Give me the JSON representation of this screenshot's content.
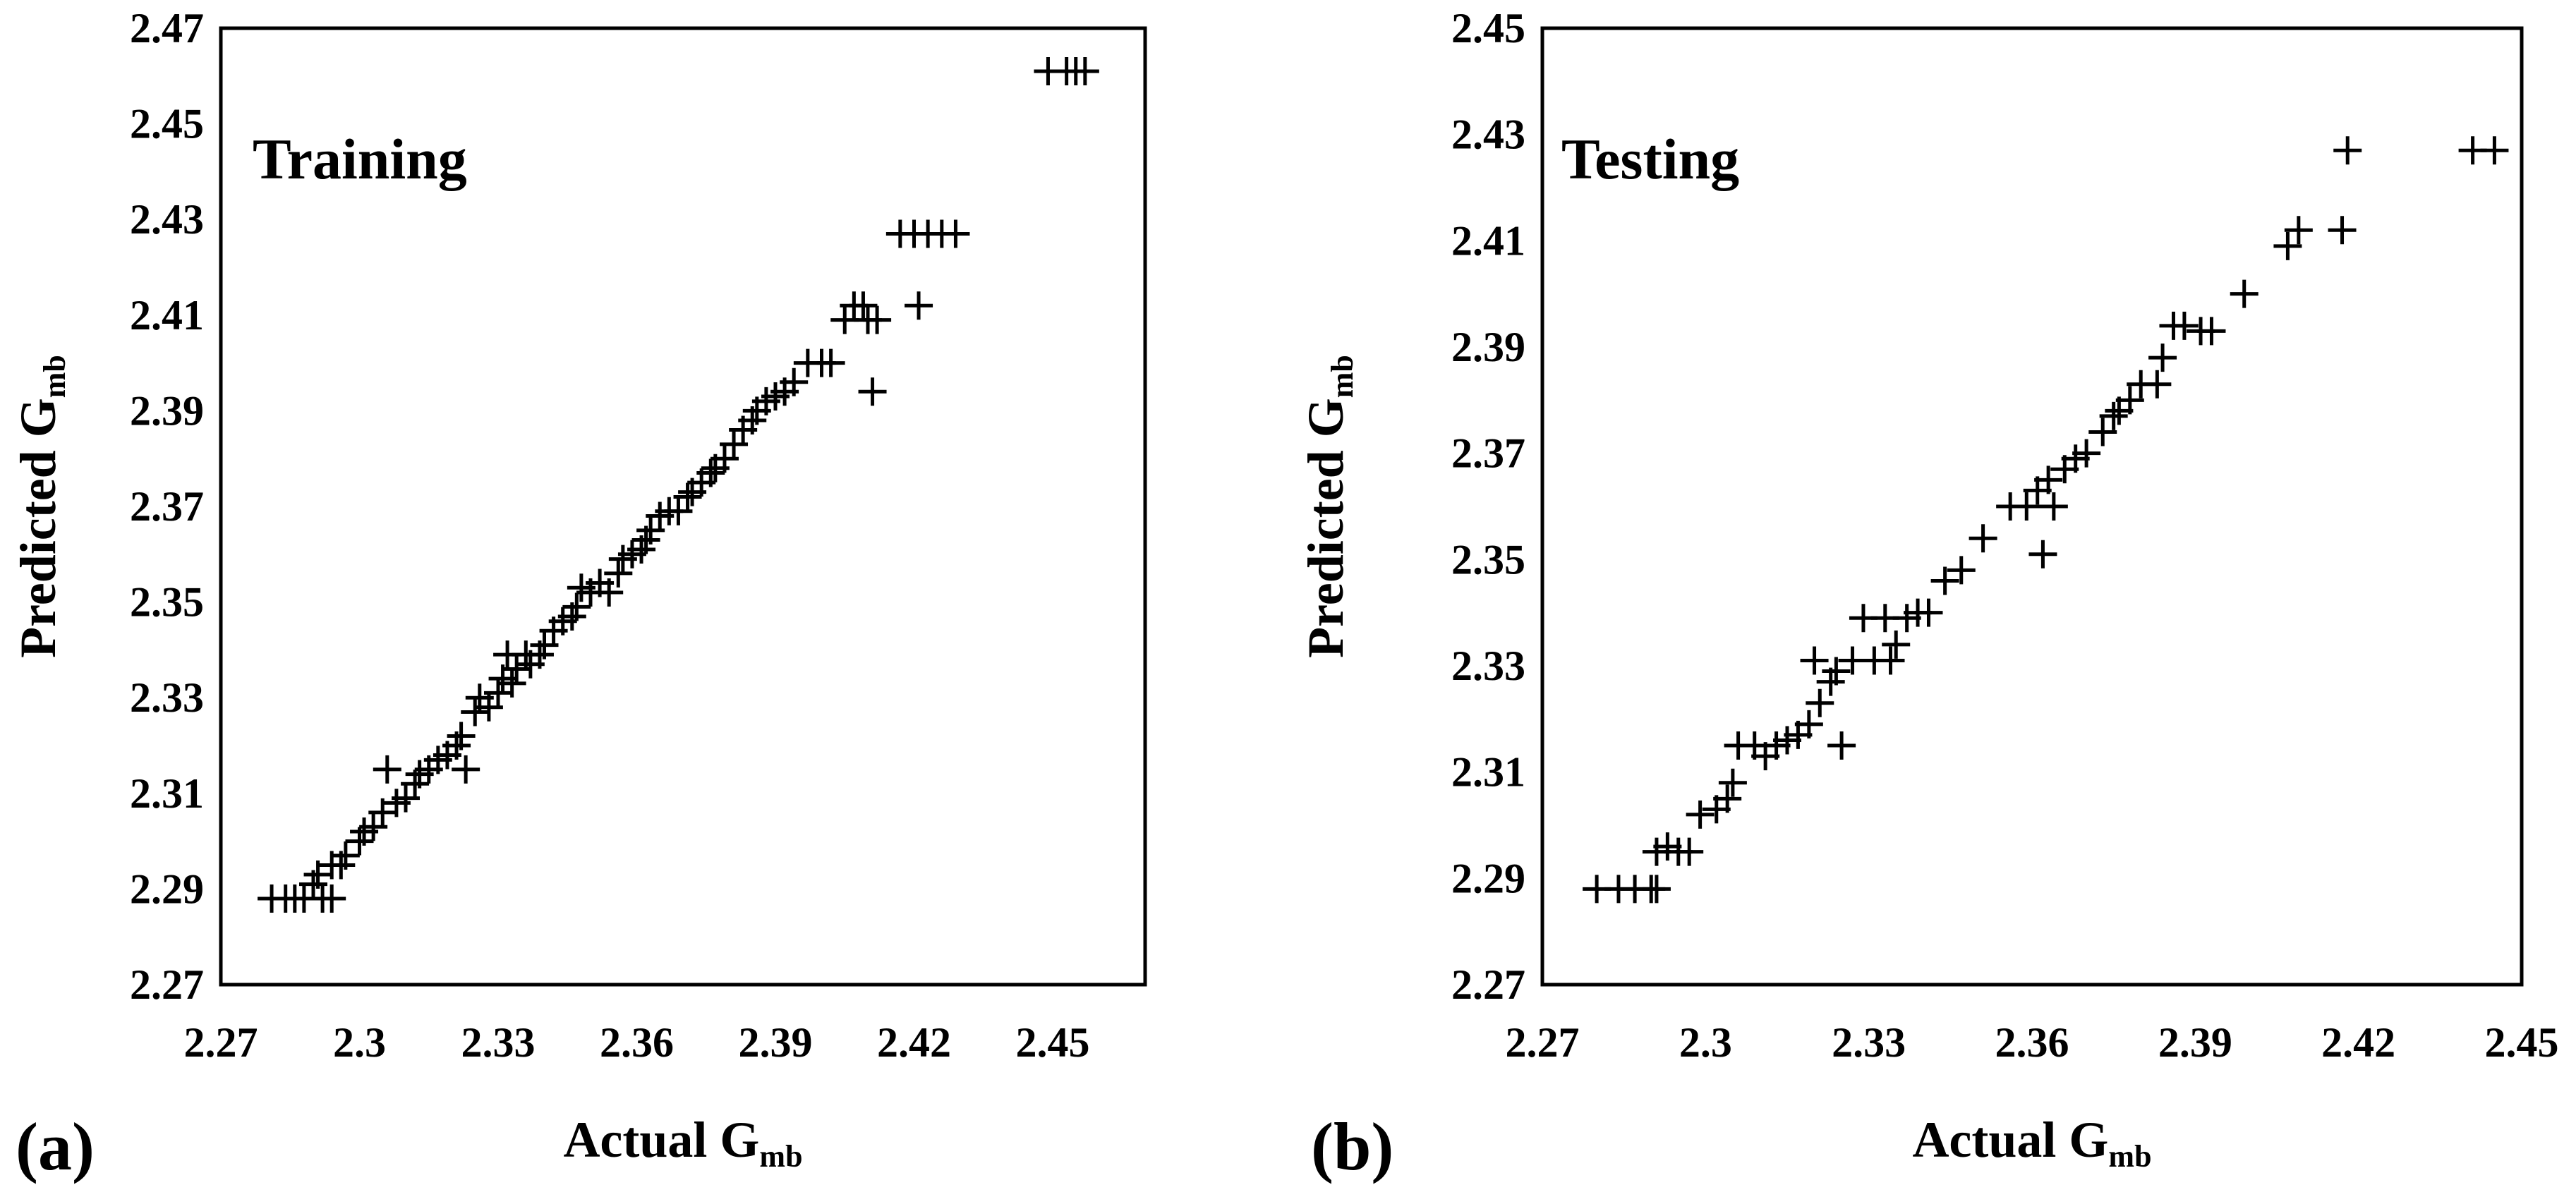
{
  "chart_data": [
    {
      "type": "scatter",
      "panel_label": "(a)",
      "title": "Training",
      "xlabel": {
        "main": "Actual G",
        "sub": "mb"
      },
      "ylabel": {
        "main": "Predicted G",
        "sub": "mb"
      },
      "xlim": [
        2.27,
        2.47
      ],
      "ylim": [
        2.27,
        2.47
      ],
      "xticks": [
        "2.27",
        "2.3",
        "2.33",
        "2.36",
        "2.39",
        "2.42",
        "2.45"
      ],
      "xtick_values": [
        2.27,
        2.3,
        2.33,
        2.36,
        2.39,
        2.42,
        2.45
      ],
      "yticks": [
        "2.27",
        "2.29",
        "2.31",
        "2.33",
        "2.35",
        "2.37",
        "2.39",
        "2.41",
        "2.43",
        "2.45",
        "2.47"
      ],
      "ytick_values": [
        2.27,
        2.29,
        2.31,
        2.33,
        2.35,
        2.37,
        2.39,
        2.41,
        2.43,
        2.45,
        2.47
      ],
      "marker": "plus",
      "points": [
        [
          2.281,
          2.288
        ],
        [
          2.284,
          2.288
        ],
        [
          2.286,
          2.288
        ],
        [
          2.288,
          2.288
        ],
        [
          2.29,
          2.291
        ],
        [
          2.292,
          2.288
        ],
        [
          2.294,
          2.288
        ],
        [
          2.291,
          2.293
        ],
        [
          2.294,
          2.295
        ],
        [
          2.296,
          2.295
        ],
        [
          2.297,
          2.297
        ],
        [
          2.3,
          2.3
        ],
        [
          2.301,
          2.302
        ],
        [
          2.303,
          2.303
        ],
        [
          2.305,
          2.306
        ],
        [
          2.306,
          2.315
        ],
        [
          2.308,
          2.308
        ],
        [
          2.31,
          2.309
        ],
        [
          2.312,
          2.312
        ],
        [
          2.313,
          2.314
        ],
        [
          2.315,
          2.315
        ],
        [
          2.317,
          2.317
        ],
        [
          2.319,
          2.318
        ],
        [
          2.321,
          2.32
        ],
        [
          2.322,
          2.322
        ],
        [
          2.323,
          2.315
        ],
        [
          2.325,
          2.327
        ],
        [
          2.326,
          2.33
        ],
        [
          2.328,
          2.328
        ],
        [
          2.33,
          2.331
        ],
        [
          2.331,
          2.334
        ],
        [
          2.332,
          2.339
        ],
        [
          2.333,
          2.333
        ],
        [
          2.334,
          2.336
        ],
        [
          2.336,
          2.339
        ],
        [
          2.337,
          2.337
        ],
        [
          2.339,
          2.339
        ],
        [
          2.34,
          2.341
        ],
        [
          2.342,
          2.344
        ],
        [
          2.344,
          2.346
        ],
        [
          2.346,
          2.347
        ],
        [
          2.347,
          2.349
        ],
        [
          2.348,
          2.353
        ],
        [
          2.35,
          2.352
        ],
        [
          2.352,
          2.354
        ],
        [
          2.354,
          2.352
        ],
        [
          2.356,
          2.356
        ],
        [
          2.357,
          2.359
        ],
        [
          2.359,
          2.36
        ],
        [
          2.361,
          2.361
        ],
        [
          2.362,
          2.363
        ],
        [
          2.363,
          2.365
        ],
        [
          2.365,
          2.368
        ],
        [
          2.367,
          2.369
        ],
        [
          2.369,
          2.369
        ],
        [
          2.371,
          2.372
        ],
        [
          2.372,
          2.373
        ],
        [
          2.374,
          2.375
        ],
        [
          2.376,
          2.377
        ],
        [
          2.377,
          2.378
        ],
        [
          2.379,
          2.38
        ],
        [
          2.381,
          2.383
        ],
        [
          2.383,
          2.386
        ],
        [
          2.385,
          2.388
        ],
        [
          2.386,
          2.39
        ],
        [
          2.388,
          2.392
        ],
        [
          2.39,
          2.393
        ],
        [
          2.392,
          2.394
        ],
        [
          2.394,
          2.396
        ],
        [
          2.397,
          2.4
        ],
        [
          2.4,
          2.4
        ],
        [
          2.402,
          2.4
        ],
        [
          2.405,
          2.409
        ],
        [
          2.407,
          2.412
        ],
        [
          2.409,
          2.412
        ],
        [
          2.41,
          2.409
        ],
        [
          2.411,
          2.394
        ],
        [
          2.412,
          2.409
        ],
        [
          2.417,
          2.427
        ],
        [
          2.42,
          2.427
        ],
        [
          2.423,
          2.427
        ],
        [
          2.421,
          2.412
        ],
        [
          2.426,
          2.427
        ],
        [
          2.429,
          2.427
        ],
        [
          2.449,
          2.461
        ],
        [
          2.453,
          2.461
        ],
        [
          2.455,
          2.461
        ],
        [
          2.457,
          2.461
        ]
      ]
    },
    {
      "type": "scatter",
      "panel_label": "(b)",
      "title": "Testing",
      "xlabel": {
        "main": "Actual G",
        "sub": "mb"
      },
      "ylabel": {
        "main": "Predicted G",
        "sub": "mb"
      },
      "xlim": [
        2.27,
        2.45
      ],
      "ylim": [
        2.27,
        2.45
      ],
      "xticks": [
        "2.27",
        "2.3",
        "2.33",
        "2.36",
        "2.39",
        "2.42",
        "2.45"
      ],
      "xtick_values": [
        2.27,
        2.3,
        2.33,
        2.36,
        2.39,
        2.42,
        2.45
      ],
      "yticks": [
        "2.27",
        "2.29",
        "2.31",
        "2.33",
        "2.35",
        "2.37",
        "2.39",
        "2.41",
        "2.43",
        "2.45"
      ],
      "ytick_values": [
        2.27,
        2.29,
        2.31,
        2.33,
        2.35,
        2.37,
        2.39,
        2.41,
        2.43,
        2.45
      ],
      "marker": "plus",
      "points": [
        [
          2.28,
          2.288
        ],
        [
          2.284,
          2.288
        ],
        [
          2.287,
          2.288
        ],
        [
          2.29,
          2.288
        ],
        [
          2.291,
          2.288
        ],
        [
          2.291,
          2.295
        ],
        [
          2.293,
          2.296
        ],
        [
          2.295,
          2.295
        ],
        [
          2.297,
          2.295
        ],
        [
          2.299,
          2.302
        ],
        [
          2.302,
          2.303
        ],
        [
          2.304,
          2.305
        ],
        [
          2.305,
          2.308
        ],
        [
          2.306,
          2.315
        ],
        [
          2.309,
          2.315
        ],
        [
          2.311,
          2.313
        ],
        [
          2.313,
          2.315
        ],
        [
          2.315,
          2.316
        ],
        [
          2.317,
          2.317
        ],
        [
          2.319,
          2.319
        ],
        [
          2.32,
          2.331
        ],
        [
          2.321,
          2.323
        ],
        [
          2.323,
          2.327
        ],
        [
          2.324,
          2.329
        ],
        [
          2.325,
          2.315
        ],
        [
          2.327,
          2.331
        ],
        [
          2.329,
          2.339
        ],
        [
          2.331,
          2.331
        ],
        [
          2.333,
          2.339
        ],
        [
          2.334,
          2.331
        ],
        [
          2.335,
          2.334
        ],
        [
          2.337,
          2.339
        ],
        [
          2.339,
          2.34
        ],
        [
          2.341,
          2.34
        ],
        [
          2.344,
          2.346
        ],
        [
          2.347,
          2.348
        ],
        [
          2.351,
          2.354
        ],
        [
          2.356,
          2.36
        ],
        [
          2.359,
          2.36
        ],
        [
          2.361,
          2.363
        ],
        [
          2.362,
          2.351
        ],
        [
          2.363,
          2.365
        ],
        [
          2.364,
          2.36
        ],
        [
          2.366,
          2.367
        ],
        [
          2.368,
          2.369
        ],
        [
          2.37,
          2.37
        ],
        [
          2.373,
          2.374
        ],
        [
          2.375,
          2.377
        ],
        [
          2.376,
          2.378
        ],
        [
          2.378,
          2.38
        ],
        [
          2.38,
          2.383
        ],
        [
          2.383,
          2.383
        ],
        [
          2.384,
          2.388
        ],
        [
          2.386,
          2.394
        ],
        [
          2.388,
          2.394
        ],
        [
          2.391,
          2.393
        ],
        [
          2.393,
          2.393
        ],
        [
          2.399,
          2.4
        ],
        [
          2.407,
          2.409
        ],
        [
          2.409,
          2.412
        ],
        [
          2.418,
          2.427
        ],
        [
          2.417,
          2.412
        ],
        [
          2.441,
          2.427
        ],
        [
          2.445,
          2.427
        ]
      ]
    }
  ]
}
